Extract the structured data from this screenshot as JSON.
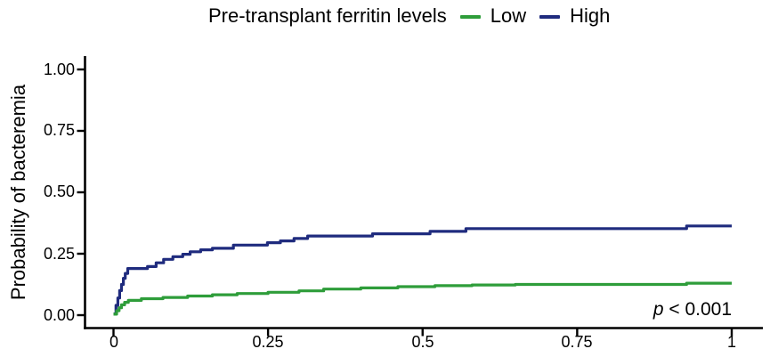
{
  "figure": {
    "legend_title": "Pre-transplant ferritin levels",
    "legend": [
      {
        "label": "Low",
        "color": "#2e9d3a",
        "icon": "line-key"
      },
      {
        "label": "High",
        "color": "#1f2b7e",
        "icon": "line-key"
      }
    ],
    "p_value": {
      "symbol": "p",
      "comparison": " < 0.001"
    }
  },
  "chart_data": {
    "type": "line",
    "subtype": "step-cumulative-incidence",
    "title": "Pre-transplant ferritin levels",
    "xlabel": "",
    "ylabel": "Probability of bacteremia",
    "xlim": [
      0,
      1
    ],
    "ylim": [
      0,
      1
    ],
    "grid": false,
    "legend_position": "top",
    "annotation": "p < 0.001",
    "axis_color": "#000000",
    "x_ticks": [
      0,
      0.25,
      0.5,
      0.75,
      1
    ],
    "x_tick_labels": [
      "0",
      "0.25",
      "0.5",
      "0.75",
      "1"
    ],
    "y_ticks": [
      0,
      0.25,
      0.5,
      0.75,
      1
    ],
    "y_tick_labels": [
      "0.00",
      "0.25",
      "0.50",
      "0.75",
      "1.00"
    ],
    "series": [
      {
        "name": "High",
        "color": "#1f2b7e",
        "x_end": 1.0,
        "steps": [
          [
            0.0,
            0.005
          ],
          [
            0.004,
            0.04
          ],
          [
            0.007,
            0.07
          ],
          [
            0.01,
            0.1
          ],
          [
            0.013,
            0.125
          ],
          [
            0.016,
            0.15
          ],
          [
            0.019,
            0.17
          ],
          [
            0.023,
            0.19
          ],
          [
            0.055,
            0.198
          ],
          [
            0.069,
            0.213
          ],
          [
            0.081,
            0.227
          ],
          [
            0.096,
            0.238
          ],
          [
            0.112,
            0.248
          ],
          [
            0.124,
            0.258
          ],
          [
            0.141,
            0.266
          ],
          [
            0.16,
            0.272
          ],
          [
            0.194,
            0.285
          ],
          [
            0.249,
            0.295
          ],
          [
            0.27,
            0.302
          ],
          [
            0.292,
            0.312
          ],
          [
            0.314,
            0.322
          ],
          [
            0.419,
            0.331
          ],
          [
            0.512,
            0.341
          ],
          [
            0.57,
            0.352
          ],
          [
            0.927,
            0.363
          ]
        ]
      },
      {
        "name": "Low",
        "color": "#2e9d3a",
        "x_end": 1.0,
        "steps": [
          [
            0.0,
            0.004
          ],
          [
            0.005,
            0.018
          ],
          [
            0.009,
            0.03
          ],
          [
            0.013,
            0.042
          ],
          [
            0.018,
            0.052
          ],
          [
            0.024,
            0.06
          ],
          [
            0.045,
            0.067
          ],
          [
            0.08,
            0.072
          ],
          [
            0.12,
            0.078
          ],
          [
            0.16,
            0.083
          ],
          [
            0.2,
            0.088
          ],
          [
            0.25,
            0.093
          ],
          [
            0.3,
            0.099
          ],
          [
            0.34,
            0.106
          ],
          [
            0.4,
            0.111
          ],
          [
            0.46,
            0.116
          ],
          [
            0.52,
            0.12
          ],
          [
            0.58,
            0.123
          ],
          [
            0.65,
            0.125
          ],
          [
            0.927,
            0.13
          ]
        ]
      }
    ]
  }
}
